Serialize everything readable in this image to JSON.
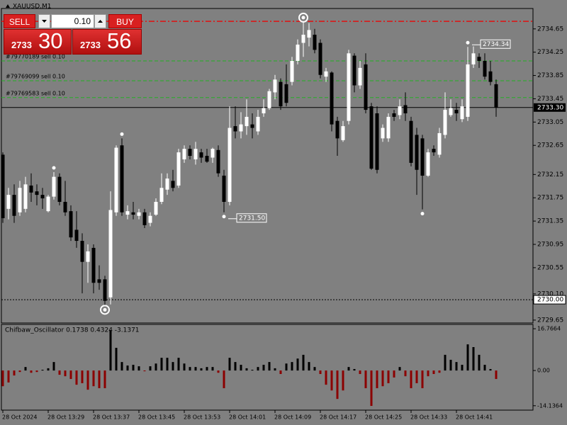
{
  "trade_panel": {
    "sell": "SELL",
    "buy": "BUY",
    "volume": "0.10",
    "bid_prefix": "2733",
    "bid_big": "30",
    "ask_prefix": "2733",
    "ask_big": "56"
  },
  "chart_data": [
    {
      "type": "candlestick",
      "title": "XAUUSD,M1",
      "categories": [
        "28 Oct 2024",
        null,
        null,
        null,
        null,
        null,
        null,
        null,
        "28 Oct 13:29",
        null,
        null,
        null,
        null,
        null,
        null,
        null,
        "28 Oct 13:37",
        null,
        null,
        null,
        null,
        null,
        null,
        null,
        "28 Oct 13:45",
        null,
        null,
        null,
        null,
        null,
        null,
        null,
        "28 Oct 13:53",
        null,
        null,
        null,
        null,
        null,
        null,
        null,
        "28 Oct 14:01",
        null,
        null,
        null,
        null,
        null,
        null,
        null,
        "28 Oct 14:09",
        null,
        null,
        null,
        null,
        null,
        null,
        null,
        "28 Oct 14:17",
        null,
        null,
        null,
        null,
        null,
        null,
        null,
        "28 Oct 14:25",
        null,
        null,
        null,
        null,
        null,
        null,
        null,
        "28 Oct 14:33",
        null,
        null,
        null,
        null,
        null,
        null,
        null,
        "28 Oct 14:41",
        null,
        null,
        null,
        null,
        null,
        null,
        null
      ],
      "open": [
        2732.49,
        2731.56,
        2731.8,
        2731.5,
        2731.56,
        2731.96,
        2731.86,
        2731.8,
        2731.52,
        2731.77,
        2732.11,
        2731.68,
        2731.52,
        2731.2,
        2731.01,
        2730.65,
        2730.89,
        2730.35,
        2730.35,
        2730.04,
        2731.5,
        2732.65,
        2731.46,
        2731.5,
        2731.44,
        2731.5,
        2731.32,
        2731.46,
        2731.68,
        2731.89,
        2732.04,
        2731.96,
        2732.41,
        2732.59,
        2732.41,
        2732.53,
        2732.47,
        2732.44,
        2732.57,
        2732.13,
        2731.68,
        2732.98,
        2732.89,
        2732.98,
        2733.01,
        2732.89,
        2733.2,
        2733.29,
        2733.56,
        2733.74,
        2733.7,
        2733.74,
        2734.1,
        2734.41,
        2734.5,
        2734.55,
        2734.41,
        2733.83,
        2733.9,
        2733.07,
        2732.74,
        2733.07,
        2734.19,
        2733.68,
        2734.04,
        2733.32,
        2733.2,
        2732.77,
        2732.77,
        2733.2,
        2733.17,
        2733.34,
        2733.07,
        2732.83,
        2732.77,
        2732.13,
        2732.59,
        2732.49,
        2732.83,
        2733.17,
        2733.26,
        2733.1,
        2733.14,
        2734.04,
        2734.17,
        2734.1,
        2733.92,
        2733.7
      ],
      "high": [
        2732.53,
        2731.92,
        2731.98,
        2732.04,
        2732.11,
        2732.17,
        2731.98,
        2731.92,
        2731.8,
        2732.19,
        2732.17,
        2732.04,
        2731.62,
        2731.52,
        2731.14,
        2730.95,
        2730.95,
        2730.59,
        2730.41,
        2731.86,
        2732.65,
        2732.77,
        2731.62,
        2731.68,
        2731.56,
        2731.56,
        2731.5,
        2731.74,
        2732.17,
        2732.17,
        2732.23,
        2732.59,
        2732.65,
        2732.65,
        2732.71,
        2732.59,
        2732.59,
        2732.61,
        2732.65,
        2732.23,
        2733.32,
        2733.32,
        2733.22,
        2733.44,
        2733.2,
        2733.26,
        2733.44,
        2733.62,
        2733.86,
        2733.8,
        2734.04,
        2734.17,
        2734.47,
        2734.77,
        2734.75,
        2734.65,
        2734.47,
        2733.98,
        2733.92,
        2733.14,
        2733.07,
        2734.29,
        2734.23,
        2734.1,
        2734.23,
        2733.38,
        2733.32,
        2733.01,
        2733.2,
        2733.26,
        2733.44,
        2733.56,
        2733.14,
        2732.95,
        2732.83,
        2732.59,
        2732.65,
        2732.95,
        2733.56,
        2733.44,
        2733.38,
        2733.44,
        2734.34,
        2734.35,
        2734.23,
        2734.23,
        2734.1,
        2733.78
      ],
      "low": [
        2731.32,
        2731.38,
        2731.32,
        2731.44,
        2731.5,
        2731.68,
        2731.62,
        2731.56,
        2731.5,
        2731.72,
        2731.62,
        2731.44,
        2731.01,
        2730.89,
        2730.11,
        2730.29,
        2730.11,
        2730.17,
        2729.9,
        2729.92,
        2731.44,
        2731.44,
        2731.38,
        2731.38,
        2731.38,
        2731.23,
        2731.26,
        2731.44,
        2731.64,
        2731.8,
        2731.86,
        2731.92,
        2732.35,
        2732.41,
        2732.32,
        2732.35,
        2732.35,
        2732.35,
        2732.11,
        2731.5,
        2731.62,
        2732.77,
        2732.77,
        2732.83,
        2732.77,
        2732.83,
        2733.14,
        2733.26,
        2733.44,
        2733.26,
        2733.32,
        2733.68,
        2734.04,
        2734.17,
        2734.35,
        2734.23,
        2733.8,
        2733.74,
        2732.89,
        2732.47,
        2732.71,
        2733.01,
        2733.56,
        2733.62,
        2733.2,
        2732.23,
        2732.17,
        2732.71,
        2732.71,
        2733.07,
        2733.1,
        2733.07,
        2732.29,
        2731.8,
        2731.55,
        2732.11,
        2732.47,
        2732.44,
        2732.77,
        2733.14,
        2733.07,
        2733.05,
        2733.07,
        2733.98,
        2733.98,
        2733.78,
        2733.68,
        2733.14
      ],
      "close": [
        2731.4,
        2731.8,
        2731.44,
        2731.92,
        2731.98,
        2731.84,
        2731.8,
        2731.74,
        2731.77,
        2732.11,
        2731.68,
        2731.5,
        2731.07,
        2731.01,
        2730.65,
        2730.83,
        2730.29,
        2730.29,
        2729.98,
        2731.54,
        2732.61,
        2731.5,
        2731.52,
        2731.46,
        2731.5,
        2731.28,
        2731.44,
        2731.68,
        2731.92,
        2732.08,
        2731.92,
        2732.53,
        2732.59,
        2732.47,
        2732.59,
        2732.44,
        2732.37,
        2732.59,
        2732.17,
        2731.68,
        2732.95,
        2732.89,
        2733.01,
        2733.14,
        2732.95,
        2733.14,
        2733.29,
        2733.58,
        2733.78,
        2733.32,
        2733.38,
        2734.1,
        2734.38,
        2734.55,
        2734.63,
        2734.29,
        2733.86,
        2733.92,
        2733.01,
        2732.77,
        2732.98,
        2734.23,
        2733.68,
        2733.98,
        2733.26,
        2732.25,
        2732.23,
        2732.95,
        2733.14,
        2733.14,
        2733.32,
        2733.2,
        2732.35,
        2732.23,
        2732.13,
        2732.53,
        2732.53,
        2732.86,
        2733.26,
        2733.29,
        2733.2,
        2733.32,
        2734.04,
        2734.23,
        2734.1,
        2733.83,
        2733.74,
        2733.3
      ],
      "up_color": "#ffffff",
      "down_color": "#000000",
      "ylim": [
        2729.6,
        2735.0
      ],
      "yticks": [
        2734.65,
        2734.25,
        2733.85,
        2733.45,
        2733.05,
        2732.65,
        2732.15,
        2731.75,
        2731.35,
        2730.95,
        2730.55,
        {
          "value": 2730.1,
          "label": "2730.10"
        },
        2729.65
      ],
      "bid": {
        "value": 2733.3,
        "label": "2733.30"
      },
      "level": {
        "value": 2730,
        "label": "2730.00"
      },
      "alert_line": 2734.78,
      "orders": [
        {
          "label": "#79770189 sell 0.10",
          "value": 2734.1
        },
        {
          "label": "#79769099 sell 0.10",
          "value": 2733.76
        },
        {
          "label": "#79769583 sell 0.10",
          "value": 2733.47
        }
      ],
      "swing_highs": [
        2732.19,
        2732.77,
        2734.77
      ],
      "swing_lows": [
        2729.9,
        2731.55
      ],
      "labeled_highs": [
        2734.34
      ],
      "labeled_lows": [
        {
          "value": 2731.5,
          "label": "2731.50"
        }
      ]
    },
    {
      "type": "histogram",
      "title": "Chifbaw_Oscillator 0.1738 0.4324 -3.1371",
      "values": [
        -6.3,
        -4.8,
        -2.0,
        -0.6,
        1.4,
        -0.9,
        -0.6,
        0.3,
        0.9,
        3.4,
        -1.7,
        -2.3,
        -3.4,
        -5.7,
        -5.1,
        -7.7,
        -6.3,
        -7.1,
        -7.1,
        16.2,
        9.1,
        3.4,
        2.0,
        2.3,
        1.7,
        -0.3,
        1.7,
        2.8,
        5.1,
        5.1,
        3.4,
        5.1,
        2.8,
        1.4,
        1.4,
        0.9,
        1.4,
        1.4,
        -0.9,
        -7.1,
        5.1,
        3.4,
        2.3,
        0.9,
        0.3,
        1.4,
        2.3,
        3.4,
        0.9,
        -1.4,
        2.8,
        3.4,
        4.8,
        6.3,
        3.4,
        1.4,
        -1.4,
        -5.7,
        -8.0,
        -11.4,
        -8.0,
        1.4,
        0.6,
        -1.4,
        -7.1,
        -14.2,
        -7.1,
        -6.3,
        -5.1,
        -2.8,
        1.4,
        -2.3,
        -7.1,
        -5.1,
        -7.1,
        -2.3,
        -1.4,
        -0.9,
        6.3,
        4.3,
        3.4,
        2.3,
        10.5,
        9.4,
        6.3,
        2.3,
        0.6,
        -3.4
      ],
      "up_color": "#000000",
      "down_color": "#8b0000",
      "ylim": [
        -15.9,
        18.5
      ],
      "yticks": [
        16.7664,
        {
          "value": 0,
          "label": "0.00"
        },
        -14.1364
      ]
    }
  ]
}
